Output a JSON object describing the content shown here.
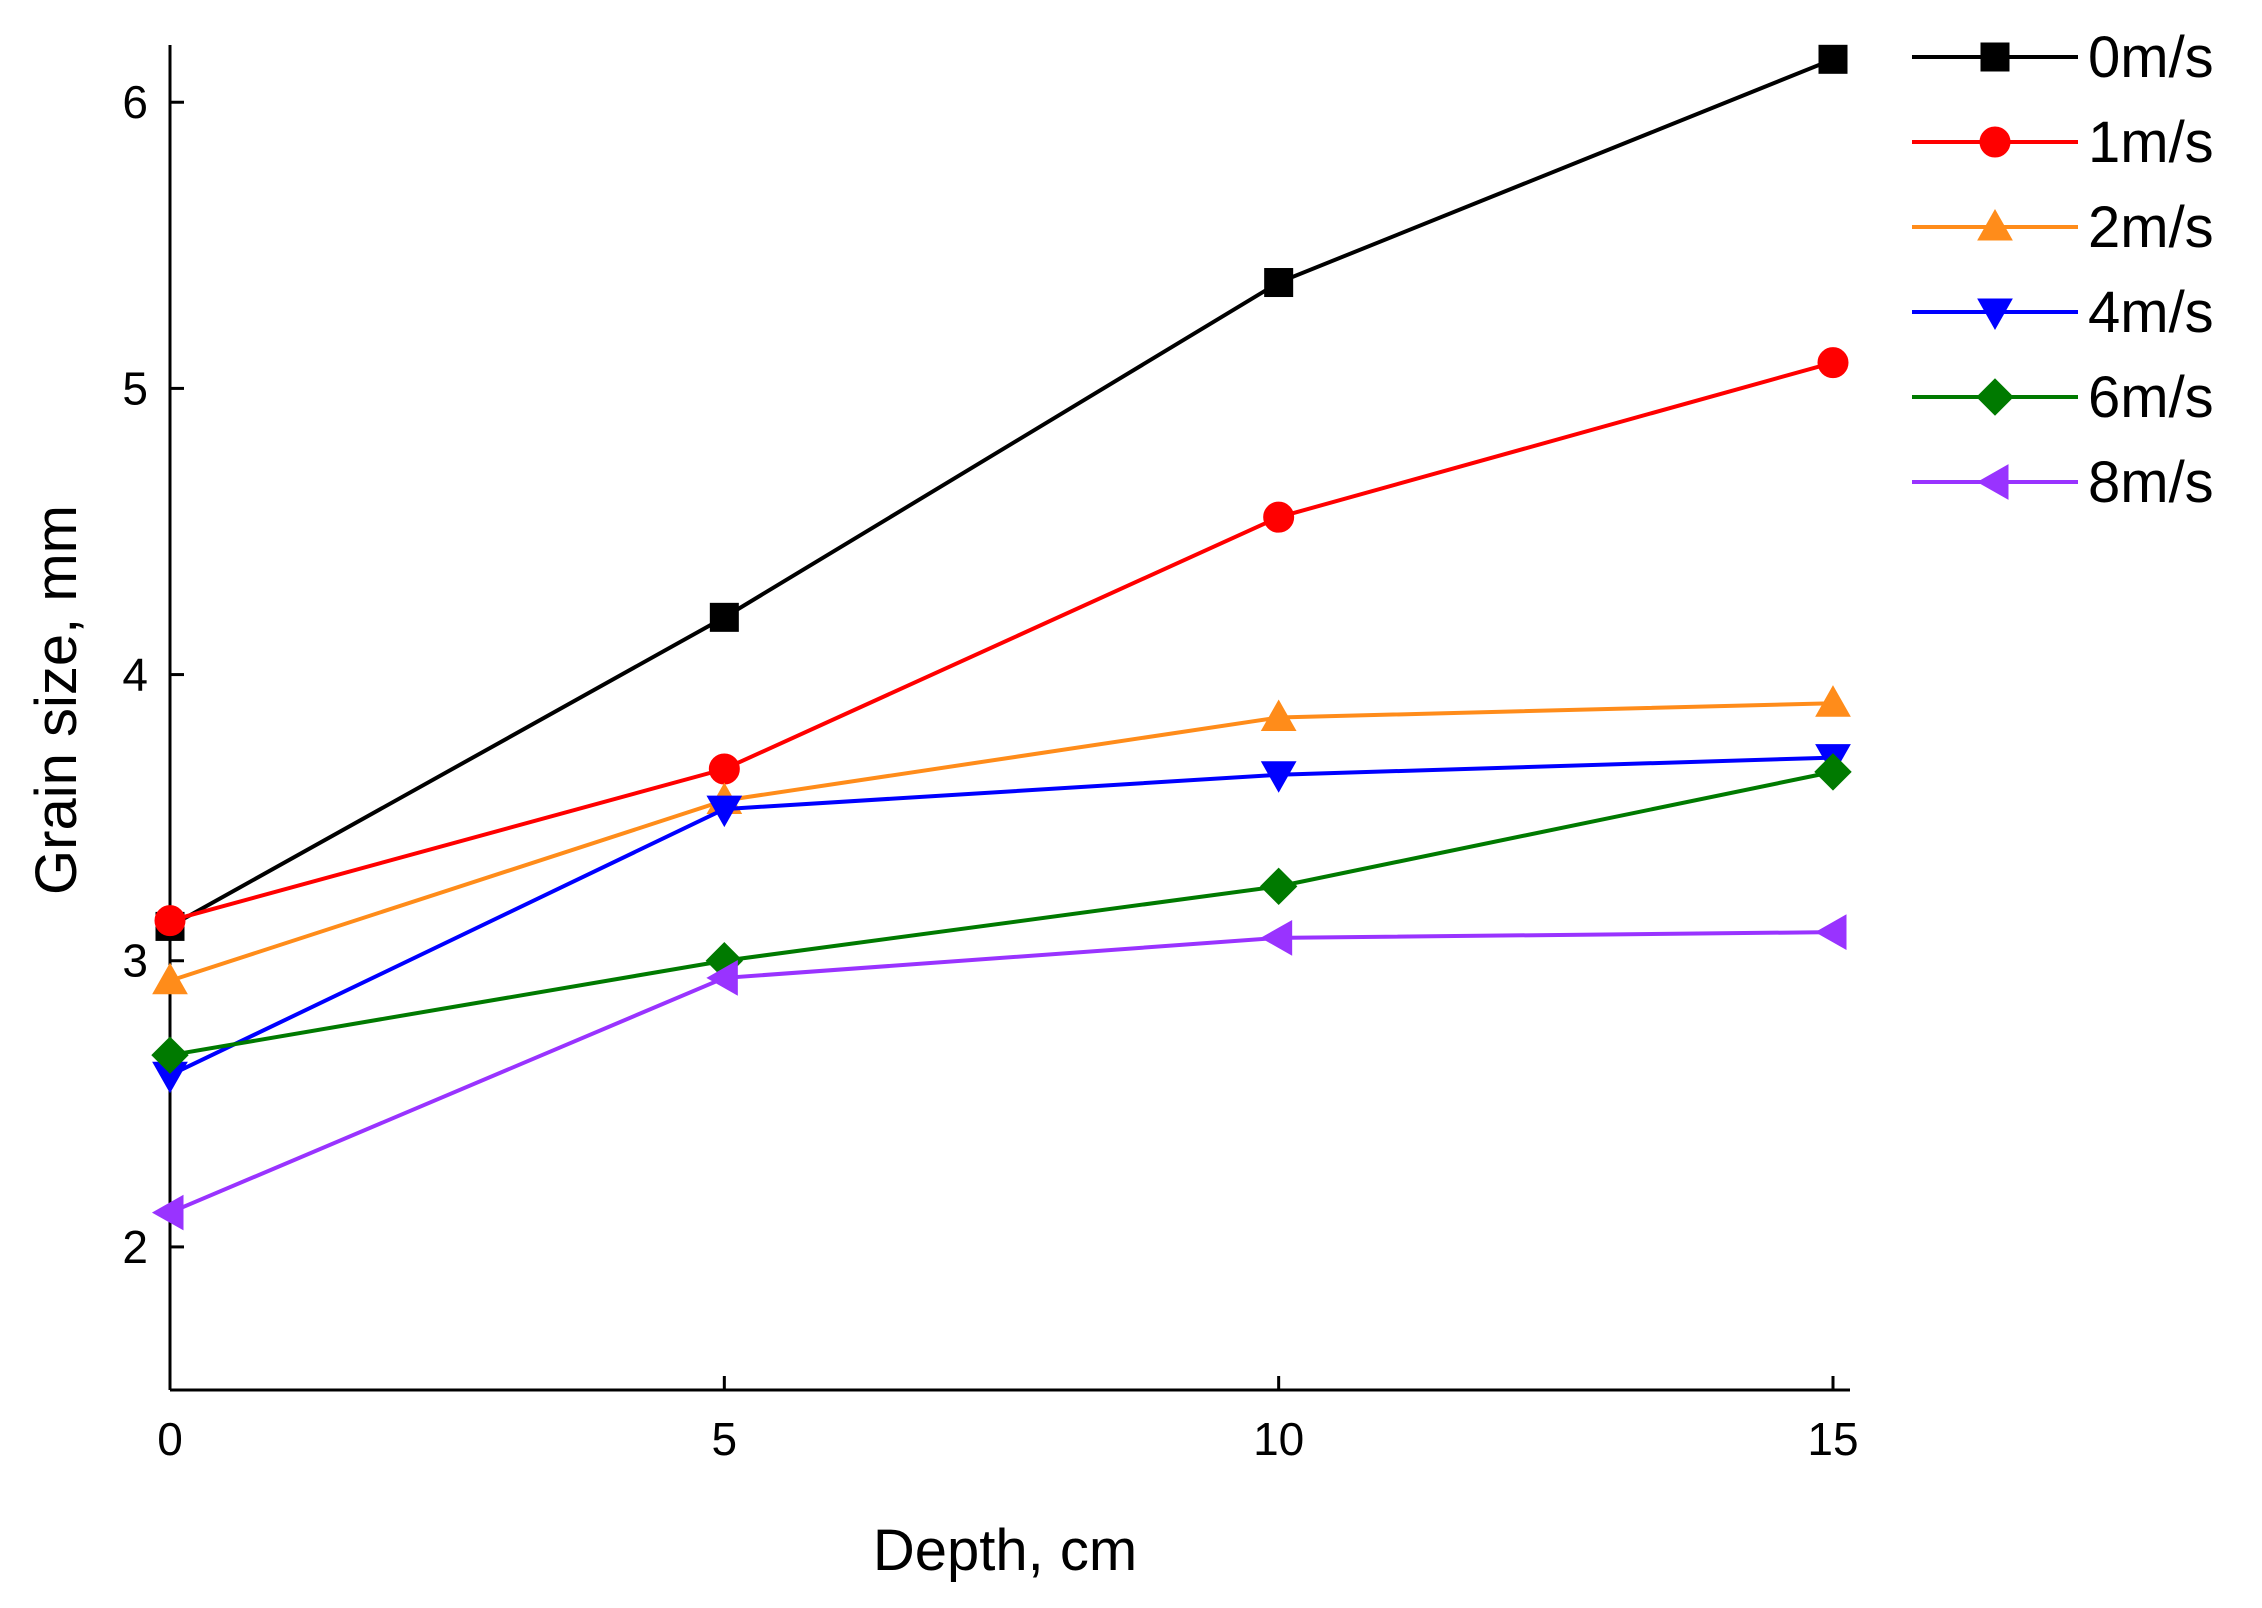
{
  "chart_data": {
    "type": "line",
    "title": "",
    "xlabel": "Depth, cm",
    "ylabel": "Grain size, mm",
    "x": [
      0,
      5,
      10,
      15
    ],
    "xlim": [
      0,
      15
    ],
    "ylim": [
      1.5,
      6.2
    ],
    "xticks": [
      "0",
      "5",
      "10",
      "15"
    ],
    "yticks": [
      "2",
      "3",
      "4",
      "5",
      "6"
    ],
    "grid": false,
    "legend_position": "top-right",
    "series": [
      {
        "name": "0m/s",
        "color": "#000000",
        "marker": "square",
        "values": [
          3.12,
          4.2,
          5.37,
          6.15
        ]
      },
      {
        "name": "1m/s",
        "color": "#ff0000",
        "marker": "circle",
        "values": [
          3.14,
          3.67,
          4.55,
          5.09
        ]
      },
      {
        "name": "2m/s",
        "color": "#ff8c1a",
        "marker": "triangle-up",
        "values": [
          2.93,
          3.56,
          3.85,
          3.9
        ]
      },
      {
        "name": "4m/s",
        "color": "#0000ff",
        "marker": "triangle-down",
        "values": [
          2.6,
          3.53,
          3.65,
          3.71
        ]
      },
      {
        "name": "6m/s",
        "color": "#007a00",
        "marker": "diamond",
        "values": [
          2.67,
          3.0,
          3.26,
          3.66
        ]
      },
      {
        "name": "8m/s",
        "color": "#9933ff",
        "marker": "triangle-left",
        "values": [
          2.12,
          2.94,
          3.08,
          3.1
        ]
      }
    ]
  }
}
